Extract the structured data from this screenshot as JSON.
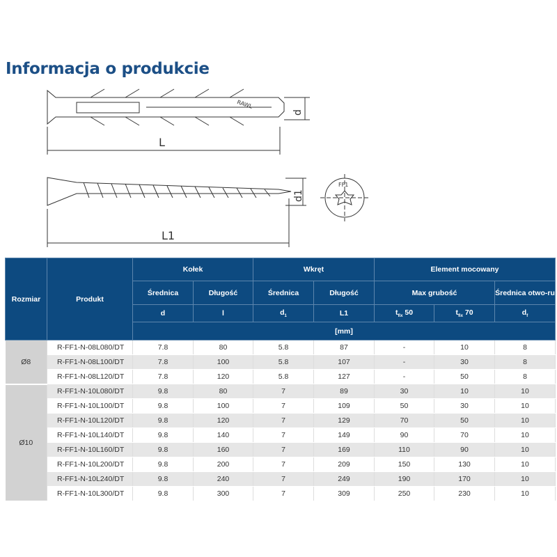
{
  "title": "Informacja o produkcie",
  "drawing": {
    "dim_L": "L",
    "dim_d": "d",
    "dim_L1": "L1",
    "dim_d1": "d1",
    "brand": "RAWL",
    "head_mark": "FF1"
  },
  "table": {
    "h_rozmiar": "Rozmiar",
    "h_produkt": "Produkt",
    "h_kolek": "Kołek",
    "h_wkret": "Wkręt",
    "h_element": "Element mocowany",
    "h_srednica1": "Średnica",
    "h_dlugosc1": "Długość",
    "h_srednica2": "Średnica",
    "h_dlugosc2": "Długość",
    "h_max": "Max grubość",
    "h_otwor": "Średnica otwo-ru",
    "s_d": "d",
    "s_l": "l",
    "s_d1": "d",
    "s_d1_sub": "1",
    "s_L1": "L1",
    "s_t50": "t",
    "s_t50_sub": "fix",
    "s_t50_v": " 50",
    "s_t70": "t",
    "s_t70_sub": "fix",
    "s_t70_v": " 70",
    "s_df": "d",
    "s_df_sub": "f",
    "unit": "[mm]",
    "groups": [
      {
        "size": "Ø8",
        "rows": 3
      },
      {
        "size": "Ø10",
        "rows": 8
      }
    ],
    "rows": [
      [
        "R-FF1-N-08L080/DT",
        "7.8",
        "80",
        "5.8",
        "87",
        "-",
        "10",
        "8"
      ],
      [
        "R-FF1-N-08L100/DT",
        "7.8",
        "100",
        "5.8",
        "107",
        "-",
        "30",
        "8"
      ],
      [
        "R-FF1-N-08L120/DT",
        "7.8",
        "120",
        "5.8",
        "127",
        "-",
        "50",
        "8"
      ],
      [
        "R-FF1-N-10L080/DT",
        "9.8",
        "80",
        "7",
        "89",
        "30",
        "10",
        "10"
      ],
      [
        "R-FF1-N-10L100/DT",
        "9.8",
        "100",
        "7",
        "109",
        "50",
        "30",
        "10"
      ],
      [
        "R-FF1-N-10L120/DT",
        "9.8",
        "120",
        "7",
        "129",
        "70",
        "50",
        "10"
      ],
      [
        "R-FF1-N-10L140/DT",
        "9.8",
        "140",
        "7",
        "149",
        "90",
        "70",
        "10"
      ],
      [
        "R-FF1-N-10L160/DT",
        "9.8",
        "160",
        "7",
        "169",
        "110",
        "90",
        "10"
      ],
      [
        "R-FF1-N-10L200/DT",
        "9.8",
        "200",
        "7",
        "209",
        "150",
        "130",
        "10"
      ],
      [
        "R-FF1-N-10L240/DT",
        "9.8",
        "240",
        "7",
        "249",
        "190",
        "170",
        "10"
      ],
      [
        "R-FF1-N-10L300/DT",
        "9.8",
        "300",
        "7",
        "309",
        "250",
        "230",
        "10"
      ]
    ]
  }
}
